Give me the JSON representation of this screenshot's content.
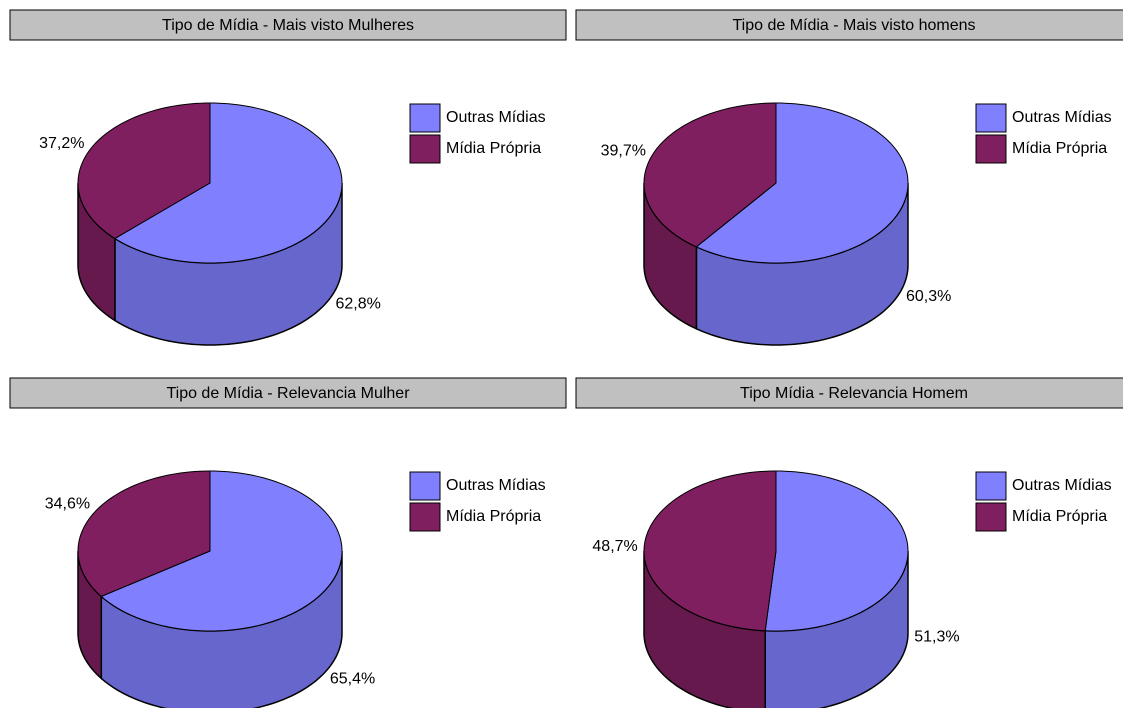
{
  "chart_data": [
    {
      "type": "pie",
      "title": "Tipo de Mídia - Mais visto Mulheres",
      "categories": [
        "Outras Mídias",
        "Mídia Própria"
      ],
      "values": [
        62.8,
        37.2
      ],
      "value_labels": [
        "62,8%",
        "37,2%"
      ],
      "colors": [
        "#8080ff",
        "#7f1f5f"
      ],
      "legend": "right"
    },
    {
      "type": "pie",
      "title": "Tipo de Mídia - Mais visto homens",
      "categories": [
        "Outras Mídias",
        "Mídia Própria"
      ],
      "values": [
        60.3,
        39.7
      ],
      "value_labels": [
        "60,3%",
        "39,7%"
      ],
      "colors": [
        "#8080ff",
        "#7f1f5f"
      ],
      "legend": "right"
    },
    {
      "type": "pie",
      "title": "Tipo de Mídia - Relevancia Mulher",
      "categories": [
        "Outras Mídias",
        "Mídia Própria"
      ],
      "values": [
        65.4,
        34.6
      ],
      "value_labels": [
        "65,4%",
        "34,6%"
      ],
      "colors": [
        "#8080ff",
        "#7f1f5f"
      ],
      "legend": "right"
    },
    {
      "type": "pie",
      "title": "Tipo Mídia - Relevancia Homem",
      "categories": [
        "Outras Mídias",
        "Mídia Própria"
      ],
      "values": [
        51.3,
        48.7
      ],
      "value_labels": [
        "51,3%",
        "48,7%"
      ],
      "colors": [
        "#8080ff",
        "#7f1f5f"
      ],
      "legend": "right"
    }
  ]
}
